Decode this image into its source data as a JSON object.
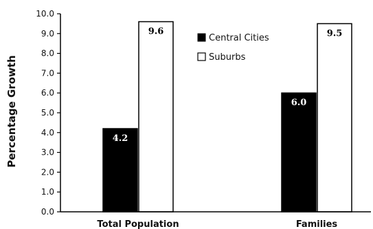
{
  "chart_data": {
    "type": "bar",
    "title": "",
    "xlabel": "",
    "ylabel": "Percentage Growth",
    "ylim": [
      0,
      10
    ],
    "yticks": [
      "0.0",
      "1.0",
      "2.0",
      "3.0",
      "4.0",
      "5.0",
      "6.0",
      "7.0",
      "8.0",
      "9.0",
      "10.0"
    ],
    "categories": [
      "Total Population",
      "Families"
    ],
    "series": [
      {
        "name": "Central Cities",
        "values": [
          4.2,
          6.0
        ],
        "labels": [
          "4.2",
          "6.0"
        ],
        "color": "#000000"
      },
      {
        "name": "Suburbs",
        "values": [
          9.6,
          9.5
        ],
        "labels": [
          "9.6",
          "9.5"
        ],
        "color": "#ffffff"
      }
    ],
    "grid": false,
    "legend": "top-center"
  }
}
